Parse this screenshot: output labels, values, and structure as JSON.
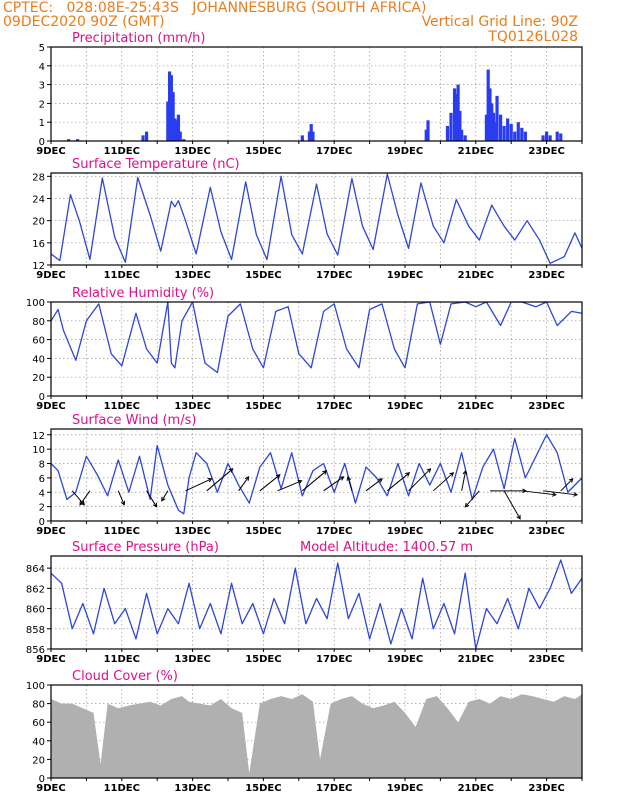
{
  "header": {
    "line1": "CPTEC:   028:08E-25:43S   JOHANNESBURG (SOUTH AFRICA)",
    "line2_left": "09DEC2020 90Z (GMT)",
    "line2_right": "Vertical Grid Line: 90Z",
    "line3_right": "TQ0126L028"
  },
  "colors": {
    "header": "#e87d1e",
    "title": "#e0108a",
    "series": "#2f46d8",
    "bars": "#2a3cf0",
    "cloud": "#b0b0b0",
    "wind": "#000000"
  },
  "x_ticks": [
    "9DEC",
    "11DEC",
    "13DEC",
    "15DEC",
    "17DEC",
    "19DEC",
    "21DEC",
    "23DEC"
  ],
  "x_range_days": [
    9,
    24
  ],
  "chart_data": [
    {
      "id": "precip",
      "type": "bar",
      "title": "Precipitation (mm/h)",
      "ylim": [
        0,
        5
      ],
      "yticks": [
        0,
        1,
        2,
        3,
        4,
        5
      ],
      "x": [
        9.5,
        9.75,
        11.6,
        11.7,
        12.3,
        12.35,
        12.4,
        12.45,
        12.5,
        12.55,
        12.6,
        12.65,
        12.75,
        16.1,
        16.3,
        16.35,
        16.4,
        19.6,
        19.65,
        20.2,
        20.3,
        20.4,
        20.45,
        20.5,
        20.55,
        20.6,
        20.7,
        21.3,
        21.35,
        21.4,
        21.45,
        21.5,
        21.55,
        21.6,
        21.7,
        21.8,
        21.9,
        22.0,
        22.1,
        22.2,
        22.3,
        22.4,
        22.9,
        23.0,
        23.1,
        23.3,
        23.4
      ],
      "values": [
        0.1,
        0.1,
        0.3,
        0.5,
        2.1,
        3.7,
        3.5,
        2.6,
        1.2,
        1.1,
        1.4,
        0.5,
        0.1,
        0.3,
        0.5,
        0.9,
        0.5,
        0.6,
        1.1,
        0.8,
        1.5,
        2.8,
        2.5,
        3.0,
        1.6,
        0.6,
        0.3,
        1.4,
        3.8,
        2.8,
        2.0,
        1.5,
        1.0,
        2.4,
        1.4,
        0.8,
        1.2,
        0.9,
        0.5,
        1.0,
        0.7,
        0.5,
        0.3,
        0.5,
        0.3,
        0.5,
        0.4
      ]
    },
    {
      "id": "temp",
      "type": "line",
      "title": "Surface Temperature (nC)",
      "ylim": [
        12,
        28.6
      ],
      "yticks": [
        12,
        16,
        20,
        24,
        28
      ],
      "x": [
        9.0,
        9.25,
        9.55,
        9.8,
        10.1,
        10.45,
        10.8,
        11.1,
        11.45,
        11.8,
        12.1,
        12.4,
        12.5,
        12.6,
        12.8,
        13.1,
        13.5,
        13.8,
        14.1,
        14.5,
        14.8,
        15.1,
        15.5,
        15.8,
        16.1,
        16.5,
        16.8,
        17.1,
        17.5,
        17.8,
        18.1,
        18.5,
        18.8,
        19.1,
        19.45,
        19.8,
        20.1,
        20.45,
        20.8,
        21.1,
        21.45,
        21.8,
        22.1,
        22.45,
        22.8,
        23.1,
        23.5,
        23.8,
        24.0
      ],
      "values": [
        14.0,
        12.8,
        24.7,
        20.0,
        13.0,
        27.7,
        17.0,
        12.5,
        27.8,
        21.0,
        14.5,
        23.5,
        22.5,
        23.6,
        20.0,
        14.0,
        26.0,
        18.0,
        13.0,
        27.0,
        17.5,
        13.0,
        28.0,
        17.5,
        14.0,
        26.6,
        17.6,
        13.8,
        27.6,
        19.0,
        14.8,
        28.4,
        21.0,
        15.0,
        26.8,
        19.0,
        16.0,
        23.8,
        19.0,
        16.5,
        22.8,
        19.0,
        16.5,
        20.0,
        16.5,
        12.3,
        13.5,
        17.8,
        15.0
      ]
    },
    {
      "id": "rh",
      "type": "line",
      "title": "Relative Humidity (%)",
      "ylim": [
        0,
        100
      ],
      "yticks": [
        0,
        20,
        40,
        60,
        80,
        100
      ],
      "x": [
        9.0,
        9.2,
        9.35,
        9.7,
        10.0,
        10.35,
        10.7,
        11.0,
        11.4,
        11.7,
        12.0,
        12.3,
        12.4,
        12.5,
        12.7,
        13.0,
        13.35,
        13.7,
        14.0,
        14.35,
        14.7,
        15.0,
        15.35,
        15.7,
        16.0,
        16.35,
        16.7,
        17.0,
        17.35,
        17.7,
        18.0,
        18.35,
        18.7,
        19.0,
        19.35,
        19.7,
        20.0,
        20.3,
        20.7,
        21.0,
        21.3,
        21.7,
        22.0,
        22.3,
        22.7,
        23.0,
        23.3,
        23.7,
        24.0
      ],
      "values": [
        80,
        92,
        70,
        38,
        80,
        98,
        45,
        32,
        88,
        50,
        35,
        100,
        35,
        30,
        80,
        100,
        35,
        25,
        85,
        98,
        50,
        30,
        90,
        95,
        45,
        30,
        90,
        98,
        50,
        30,
        92,
        98,
        50,
        30,
        98,
        100,
        55,
        98,
        100,
        95,
        100,
        75,
        100,
        100,
        95,
        100,
        75,
        90,
        88
      ]
    },
    {
      "id": "wind",
      "type": "line",
      "title": "Surface Wind (m/s)",
      "ylim": [
        0,
        12.8
      ],
      "yticks": [
        0,
        2,
        4,
        6,
        8,
        10,
        12
      ],
      "x": [
        9.0,
        9.2,
        9.45,
        9.7,
        10.0,
        10.3,
        10.6,
        10.9,
        11.2,
        11.5,
        11.8,
        12.0,
        12.3,
        12.6,
        12.75,
        12.9,
        13.1,
        13.4,
        13.7,
        14.0,
        14.3,
        14.6,
        14.9,
        15.2,
        15.5,
        15.8,
        16.1,
        16.4,
        16.7,
        17.0,
        17.3,
        17.6,
        17.9,
        18.2,
        18.5,
        18.8,
        19.1,
        19.4,
        19.7,
        20.0,
        20.3,
        20.6,
        20.9,
        21.2,
        21.5,
        21.8,
        22.1,
        22.4,
        22.7,
        23.0,
        23.3,
        23.6,
        24.0
      ],
      "values": [
        8.0,
        7.0,
        3.0,
        4.0,
        9.0,
        6.5,
        3.5,
        8.5,
        4.0,
        9.0,
        3.0,
        10.5,
        5.0,
        1.5,
        1.0,
        6.0,
        9.5,
        8.0,
        4.0,
        8.0,
        5.0,
        2.5,
        7.5,
        9.5,
        4.5,
        9.5,
        3.5,
        7.0,
        8.0,
        4.0,
        8.0,
        2.5,
        7.5,
        6.0,
        3.5,
        8.0,
        3.5,
        8.0,
        5.0,
        8.0,
        4.0,
        9.5,
        3.0,
        7.5,
        10.0,
        4.5,
        11.5,
        6.0,
        9.0,
        12.0,
        9.5,
        4.0,
        6.0
      ],
      "barbs": [
        {
          "x": 9.6,
          "dx": 12,
          "dy": 14
        },
        {
          "x": 10.1,
          "dx": -10,
          "dy": 14
        },
        {
          "x": 10.9,
          "dx": 6,
          "dy": 14
        },
        {
          "x": 11.7,
          "dx": 10,
          "dy": 16
        },
        {
          "x": 12.3,
          "dx": -6,
          "dy": 10
        },
        {
          "x": 12.8,
          "dx": 26,
          "dy": -12
        },
        {
          "x": 13.4,
          "dx": 26,
          "dy": -22
        },
        {
          "x": 14.3,
          "dx": 10,
          "dy": -14
        },
        {
          "x": 14.9,
          "dx": 20,
          "dy": -16
        },
        {
          "x": 15.4,
          "dx": 24,
          "dy": -10
        },
        {
          "x": 16.1,
          "dx": 24,
          "dy": -20
        },
        {
          "x": 16.7,
          "dx": 20,
          "dy": -14
        },
        {
          "x": 17.5,
          "dx": -4,
          "dy": -14
        },
        {
          "x": 17.9,
          "dx": 16,
          "dy": -12
        },
        {
          "x": 18.5,
          "dx": 22,
          "dy": -18
        },
        {
          "x": 19.1,
          "dx": 22,
          "dy": -22
        },
        {
          "x": 19.8,
          "dx": 20,
          "dy": -18
        },
        {
          "x": 20.6,
          "dx": 4,
          "dy": -20
        },
        {
          "x": 21.1,
          "dx": -14,
          "dy": 16
        },
        {
          "x": 21.4,
          "dx": 36,
          "dy": 0
        },
        {
          "x": 21.8,
          "dx": 16,
          "dy": 28
        },
        {
          "x": 22.3,
          "dx": 34,
          "dy": 4
        },
        {
          "x": 22.9,
          "dx": 34,
          "dy": 4
        },
        {
          "x": 23.4,
          "dx": 12,
          "dy": -12
        }
      ]
    },
    {
      "id": "pres",
      "type": "line",
      "title": "Surface Pressure (hPa)",
      "annotation": "Model Altitude:  1400.57 m",
      "ylim": [
        856,
        865.2
      ],
      "yticks": [
        856,
        858,
        860,
        862,
        864
      ],
      "x": [
        9.0,
        9.3,
        9.6,
        9.9,
        10.2,
        10.5,
        10.8,
        11.1,
        11.4,
        11.7,
        12.0,
        12.3,
        12.6,
        12.9,
        13.2,
        13.5,
        13.8,
        14.1,
        14.4,
        14.7,
        15.0,
        15.3,
        15.6,
        15.9,
        16.2,
        16.5,
        16.8,
        17.1,
        17.4,
        17.7,
        18.0,
        18.3,
        18.6,
        18.9,
        19.2,
        19.5,
        19.8,
        20.1,
        20.4,
        20.7,
        21.0,
        21.3,
        21.6,
        21.9,
        22.2,
        22.5,
        22.8,
        23.1,
        23.4,
        23.7,
        24.0
      ],
      "values": [
        863.5,
        862.5,
        858.0,
        860.5,
        857.5,
        862.0,
        858.5,
        860.0,
        857.0,
        861.5,
        857.5,
        860.0,
        858.5,
        862.5,
        858.0,
        860.5,
        857.5,
        862.5,
        858.5,
        860.5,
        857.5,
        861.0,
        858.5,
        864.0,
        858.5,
        861.0,
        859.0,
        864.5,
        859.0,
        861.5,
        857.0,
        860.5,
        856.5,
        860.0,
        857.0,
        863.0,
        858.0,
        860.5,
        857.5,
        863.5,
        856.0,
        860.0,
        858.5,
        861.0,
        858.0,
        862.0,
        860.0,
        862.0,
        864.8,
        861.5,
        863.0
      ]
    },
    {
      "id": "cloud",
      "type": "area",
      "title": "Cloud Cover (%)",
      "ylim": [
        0,
        100
      ],
      "yticks": [
        0,
        20,
        40,
        60,
        80,
        100
      ],
      "x": [
        9.0,
        9.3,
        9.6,
        9.9,
        10.2,
        10.4,
        10.6,
        10.9,
        11.2,
        11.5,
        11.8,
        12.1,
        12.4,
        12.7,
        12.9,
        13.2,
        13.5,
        13.8,
        14.1,
        14.4,
        14.6,
        14.9,
        15.2,
        15.5,
        15.8,
        16.1,
        16.4,
        16.6,
        16.9,
        17.2,
        17.5,
        17.8,
        18.1,
        18.4,
        18.7,
        19.0,
        19.3,
        19.6,
        19.9,
        20.2,
        20.5,
        20.8,
        21.1,
        21.4,
        21.7,
        22.0,
        22.3,
        22.6,
        22.9,
        23.2,
        23.5,
        23.8,
        24.0
      ],
      "values": [
        85,
        80,
        80,
        75,
        70,
        15,
        80,
        75,
        78,
        80,
        82,
        78,
        85,
        88,
        82,
        80,
        78,
        85,
        75,
        70,
        5,
        80,
        85,
        88,
        85,
        90,
        82,
        20,
        80,
        85,
        88,
        80,
        75,
        78,
        82,
        70,
        55,
        85,
        88,
        75,
        60,
        82,
        85,
        80,
        88,
        85,
        90,
        88,
        85,
        82,
        88,
        85,
        90
      ]
    }
  ]
}
